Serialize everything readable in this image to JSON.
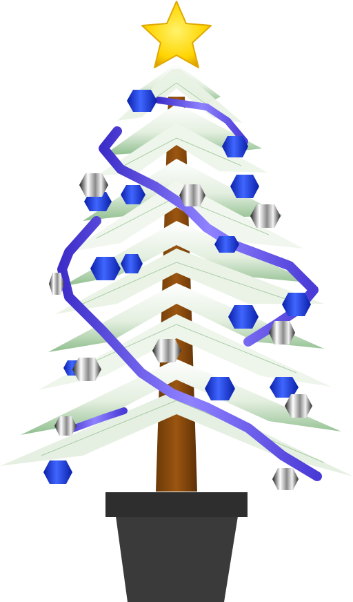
{
  "scene": {
    "subject": "christmas-tree",
    "colors": {
      "background": "#ffffff",
      "trunk": "#8a4a0c",
      "trunk_dark": "#5e3006",
      "needles_light": "#f4f8f2",
      "needles_mid": "#cfe2c9",
      "needles_dark": "#6aa56b",
      "garland": "#5b48e0",
      "garland_light": "#9d90ff",
      "ornament_blue": "#1f44ff",
      "ornament_blue_dark": "#0a1fa8",
      "ornament_silver": "#cfcfcf",
      "ornament_silver_dark": "#2a2a2a",
      "star": "#ffd400",
      "star_dark": "#e0a800",
      "pot": "#3a3a3a",
      "pot_rim": "#2b2b2b"
    },
    "parts": {
      "star_icon": "star-icon",
      "ornament_icon": "ornament-icon",
      "pot_icon": "pot-icon"
    }
  }
}
